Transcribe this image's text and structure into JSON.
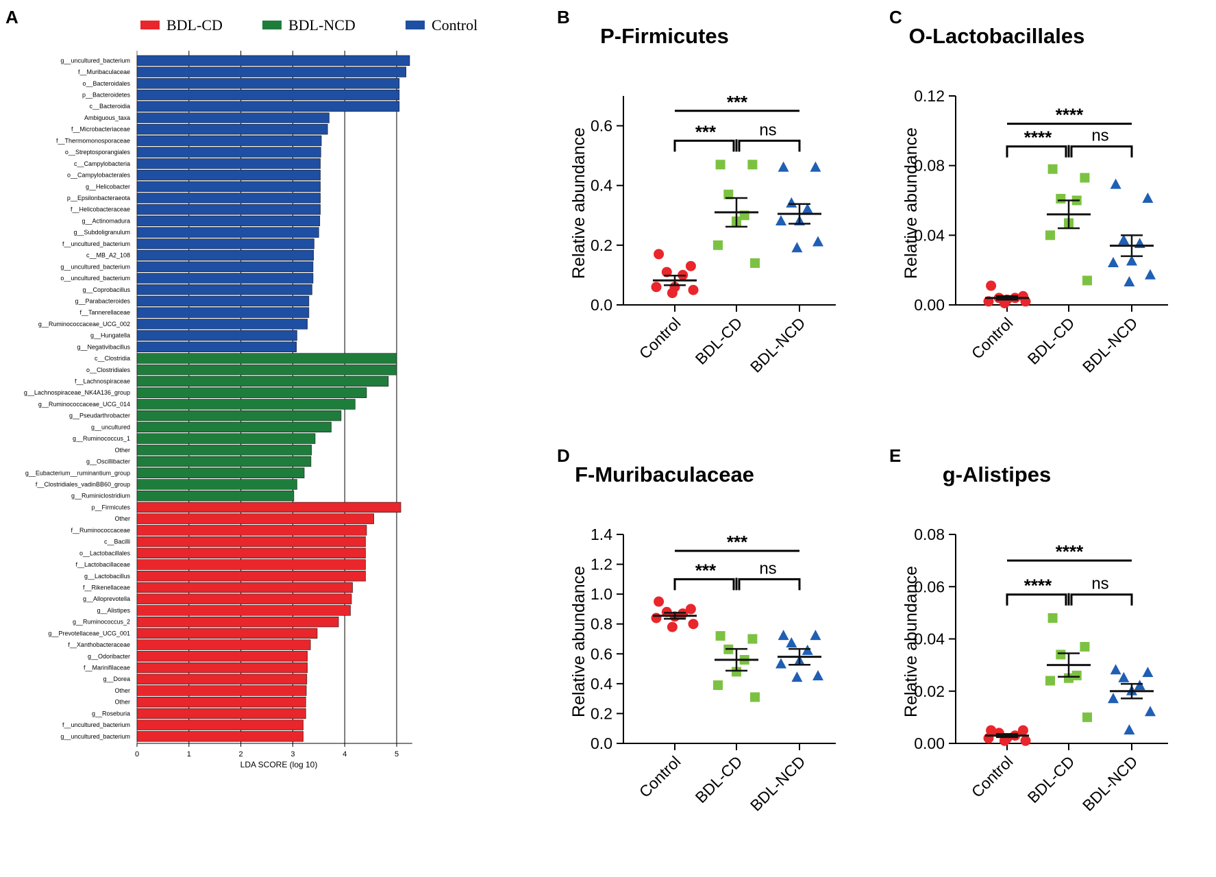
{
  "colors": {
    "bdl_cd": "#e8262b",
    "bdl_ncd": "#1f7d3c",
    "control": "#1f4fa2",
    "green_pt": "#7cc242",
    "blue_pt": "#1f5fb4"
  },
  "chart_data": [
    {
      "id": "A",
      "panel_label": "A",
      "type": "bar",
      "orientation": "horizontal",
      "legend": [
        {
          "name": "BDL-CD",
          "color": "#e8262b"
        },
        {
          "name": "BDL-NCD",
          "color": "#1f7d3c"
        },
        {
          "name": "Control",
          "color": "#1f4fa2"
        }
      ],
      "xlabel": "LDA SCORE (log 10)",
      "xlim": [
        0,
        5.3
      ],
      "xticks": [
        "0",
        "1",
        "2",
        "3",
        "4",
        "5"
      ],
      "bars": [
        {
          "label": "g__uncultured_bacterium",
          "value": 5.25,
          "group": "Control"
        },
        {
          "label": "f__Muribaculaceae",
          "value": 5.18,
          "group": "Control"
        },
        {
          "label": "o__Bacteroidales",
          "value": 5.05,
          "group": "Control"
        },
        {
          "label": "p__Bacteroidetes",
          "value": 5.05,
          "group": "Control"
        },
        {
          "label": "c__Bacteroidia",
          "value": 5.05,
          "group": "Control"
        },
        {
          "label": "Ambiguous_taxa",
          "value": 3.7,
          "group": "Control"
        },
        {
          "label": "f__Microbacteriaceae",
          "value": 3.67,
          "group": "Control"
        },
        {
          "label": "f__Thermomonosporaceae",
          "value": 3.55,
          "group": "Control"
        },
        {
          "label": "o__Streptosporangiales",
          "value": 3.54,
          "group": "Control"
        },
        {
          "label": "c__Campylobacteria",
          "value": 3.53,
          "group": "Control"
        },
        {
          "label": "o__Campylobacterales",
          "value": 3.53,
          "group": "Control"
        },
        {
          "label": "g__Helicobacter",
          "value": 3.53,
          "group": "Control"
        },
        {
          "label": "p__Epsilonbacteraeota",
          "value": 3.53,
          "group": "Control"
        },
        {
          "label": "f__Helicobacteraceae",
          "value": 3.53,
          "group": "Control"
        },
        {
          "label": "g__Actinomadura",
          "value": 3.52,
          "group": "Control"
        },
        {
          "label": "g__Subdoligranulum",
          "value": 3.5,
          "group": "Control"
        },
        {
          "label": "f__uncultured_bacterium",
          "value": 3.41,
          "group": "Control"
        },
        {
          "label": "c__MB_A2_108",
          "value": 3.4,
          "group": "Control"
        },
        {
          "label": "g__uncultured_bacterium",
          "value": 3.39,
          "group": "Control"
        },
        {
          "label": "o__uncultured_bacterium",
          "value": 3.39,
          "group": "Control"
        },
        {
          "label": "g__Coprobacillus",
          "value": 3.37,
          "group": "Control"
        },
        {
          "label": "g__Parabacteroides",
          "value": 3.31,
          "group": "Control"
        },
        {
          "label": "f__Tannerellaceae",
          "value": 3.31,
          "group": "Control"
        },
        {
          "label": "g__Ruminococcaceae_UCG_002",
          "value": 3.28,
          "group": "Control"
        },
        {
          "label": "g__Hungatella",
          "value": 3.08,
          "group": "Control"
        },
        {
          "label": "g__Negativibacillus",
          "value": 3.07,
          "group": "Control"
        },
        {
          "label": "c__Clostridia",
          "value": 5.0,
          "group": "BDL-NCD"
        },
        {
          "label": "o__Clostridiales",
          "value": 5.0,
          "group": "BDL-NCD"
        },
        {
          "label": "f__Lachnospiraceae",
          "value": 4.84,
          "group": "BDL-NCD"
        },
        {
          "label": "g__Lachnospiraceae_NK4A136_group",
          "value": 4.42,
          "group": "BDL-NCD"
        },
        {
          "label": "g__Ruminococcaceae_UCG_014",
          "value": 4.2,
          "group": "BDL-NCD"
        },
        {
          "label": "g__Pseudarthrobacter",
          "value": 3.93,
          "group": "BDL-NCD"
        },
        {
          "label": "g__uncultured",
          "value": 3.74,
          "group": "BDL-NCD"
        },
        {
          "label": "g__Ruminococcus_1",
          "value": 3.43,
          "group": "BDL-NCD"
        },
        {
          "label": "Other",
          "value": 3.36,
          "group": "BDL-NCD"
        },
        {
          "label": "g__Oscillibacter",
          "value": 3.35,
          "group": "BDL-NCD"
        },
        {
          "label": "g__Eubacterium__ruminantium_group",
          "value": 3.22,
          "group": "BDL-NCD"
        },
        {
          "label": "f__Clostridiales_vadinBB60_group",
          "value": 3.08,
          "group": "BDL-NCD"
        },
        {
          "label": "g__Ruminiclostridium",
          "value": 3.02,
          "group": "BDL-NCD"
        },
        {
          "label": "p__Firmicutes",
          "value": 5.08,
          "group": "BDL-CD"
        },
        {
          "label": "Other",
          "value": 4.56,
          "group": "BDL-CD"
        },
        {
          "label": "f__Ruminococcaceae",
          "value": 4.42,
          "group": "BDL-CD"
        },
        {
          "label": "c__Bacilli",
          "value": 4.4,
          "group": "BDL-CD"
        },
        {
          "label": "o__Lactobacillales",
          "value": 4.4,
          "group": "BDL-CD"
        },
        {
          "label": "f__Lactobacillaceae",
          "value": 4.4,
          "group": "BDL-CD"
        },
        {
          "label": "g__Lactobacillus",
          "value": 4.4,
          "group": "BDL-CD"
        },
        {
          "label": "f__Rikenellaceae",
          "value": 4.15,
          "group": "BDL-CD"
        },
        {
          "label": "g__Alloprevotella",
          "value": 4.13,
          "group": "BDL-CD"
        },
        {
          "label": "g__Alistipes",
          "value": 4.11,
          "group": "BDL-CD"
        },
        {
          "label": "g__Ruminococcus_2",
          "value": 3.88,
          "group": "BDL-CD"
        },
        {
          "label": "g__Prevotellaceae_UCG_001",
          "value": 3.47,
          "group": "BDL-CD"
        },
        {
          "label": "f__Xanthobacteraceae",
          "value": 3.34,
          "group": "BDL-CD"
        },
        {
          "label": "g__Odoribacter",
          "value": 3.28,
          "group": "BDL-CD"
        },
        {
          "label": "f__Marinifilaceae",
          "value": 3.28,
          "group": "BDL-CD"
        },
        {
          "label": "g__Dorea",
          "value": 3.27,
          "group": "BDL-CD"
        },
        {
          "label": "Other",
          "value": 3.26,
          "group": "BDL-CD"
        },
        {
          "label": "Other",
          "value": 3.25,
          "group": "BDL-CD"
        },
        {
          "label": "g__Roseburia",
          "value": 3.25,
          "group": "BDL-CD"
        },
        {
          "label": "f__uncultured_bacterium",
          "value": 3.2,
          "group": "BDL-CD"
        },
        {
          "label": "g__uncultured_bacterium",
          "value": 3.2,
          "group": "BDL-CD"
        }
      ]
    },
    {
      "id": "B",
      "panel_label": "B",
      "type": "scatter",
      "title": "P-Firmicutes",
      "ylabel": "Relative abundance",
      "ylim": [
        0,
        0.7
      ],
      "yticks": [
        "0.0",
        "0.2",
        "0.4",
        "0.6"
      ],
      "categories": [
        "Control",
        "BDL-CD",
        "BDL-NCD"
      ],
      "groups": [
        {
          "name": "Control",
          "shape": "circle",
          "color": "#e8262b",
          "points": [
            0.17,
            0.13,
            0.11,
            0.1,
            0.06,
            0.06,
            0.05,
            0.04
          ],
          "mean": 0.082,
          "sem": 0.016
        },
        {
          "name": "BDL-CD",
          "shape": "square",
          "color": "#7cc242",
          "points": [
            0.47,
            0.47,
            0.37,
            0.3,
            0.28,
            0.2,
            0.14
          ],
          "mean": 0.31,
          "sem": 0.048
        },
        {
          "name": "BDL-NCD",
          "shape": "triangle",
          "color": "#1f5fb4",
          "points": [
            0.46,
            0.46,
            0.34,
            0.32,
            0.28,
            0.28,
            0.21,
            0.19
          ],
          "mean": 0.305,
          "sem": 0.033
        }
      ],
      "significance": [
        {
          "from": 0,
          "to": 2,
          "label": "***",
          "y": 0.65,
          "bracket": false
        },
        {
          "from": 0,
          "to": 1,
          "label": "***",
          "y": 0.55,
          "bracket": true
        },
        {
          "from": 1,
          "to": 2,
          "label": "ns",
          "y": 0.55,
          "bracket": true
        }
      ]
    },
    {
      "id": "C",
      "panel_label": "C",
      "type": "scatter",
      "title": "O-Lactobacillales",
      "ylabel": "Relative abundance",
      "ylim": [
        0,
        0.12
      ],
      "yticks": [
        "0.00",
        "0.04",
        "0.08",
        "0.12"
      ],
      "categories": [
        "Control",
        "BDL-CD",
        "BDL-NCD"
      ],
      "groups": [
        {
          "name": "Control",
          "shape": "circle",
          "color": "#e8262b",
          "points": [
            0.011,
            0.005,
            0.004,
            0.004,
            0.003,
            0.002,
            0.002,
            0.001
          ],
          "mean": 0.004,
          "sem": 0.001
        },
        {
          "name": "BDL-CD",
          "shape": "square",
          "color": "#7cc242",
          "points": [
            0.078,
            0.073,
            0.061,
            0.06,
            0.047,
            0.04,
            0.014
          ],
          "mean": 0.052,
          "sem": 0.008
        },
        {
          "name": "BDL-NCD",
          "shape": "triangle",
          "color": "#1f5fb4",
          "points": [
            0.069,
            0.061,
            0.037,
            0.035,
            0.025,
            0.024,
            0.017,
            0.013
          ],
          "mean": 0.034,
          "sem": 0.006
        }
      ],
      "significance": [
        {
          "from": 0,
          "to": 2,
          "label": "****",
          "y": 0.104,
          "bracket": false
        },
        {
          "from": 0,
          "to": 1,
          "label": "****",
          "y": 0.091,
          "bracket": true
        },
        {
          "from": 1,
          "to": 2,
          "label": "ns",
          "y": 0.091,
          "bracket": true
        }
      ]
    },
    {
      "id": "D",
      "panel_label": "D",
      "type": "scatter",
      "title": "F-Muribaculaceae",
      "ylabel": "Relative abundance",
      "ylim": [
        0,
        1.4
      ],
      "yticks": [
        "0.0",
        "0.2",
        "0.4",
        "0.6",
        "0.8",
        "1.0",
        "1.2",
        "1.4"
      ],
      "categories": [
        "Control",
        "BDL-CD",
        "BDL-NCD"
      ],
      "groups": [
        {
          "name": "Control",
          "shape": "circle",
          "color": "#e8262b",
          "points": [
            0.95,
            0.9,
            0.88,
            0.87,
            0.85,
            0.84,
            0.8,
            0.78
          ],
          "mean": 0.855,
          "sem": 0.02
        },
        {
          "name": "BDL-CD",
          "shape": "square",
          "color": "#7cc242",
          "points": [
            0.72,
            0.7,
            0.63,
            0.56,
            0.48,
            0.39,
            0.31
          ],
          "mean": 0.56,
          "sem": 0.073
        },
        {
          "name": "BDL-NCD",
          "shape": "triangle",
          "color": "#1f5fb4",
          "points": [
            0.72,
            0.72,
            0.67,
            0.62,
            0.55,
            0.53,
            0.45,
            0.44
          ],
          "mean": 0.58,
          "sem": 0.053
        }
      ],
      "significance": [
        {
          "from": 0,
          "to": 2,
          "label": "***",
          "y": 1.29,
          "bracket": false
        },
        {
          "from": 0,
          "to": 1,
          "label": "***",
          "y": 1.1,
          "bracket": true
        },
        {
          "from": 1,
          "to": 2,
          "label": "ns",
          "y": 1.1,
          "bracket": true
        }
      ]
    },
    {
      "id": "E",
      "panel_label": "E",
      "type": "scatter",
      "title": "g-Alistipes",
      "ylabel": "Relative abundance",
      "ylim": [
        0,
        0.08
      ],
      "yticks": [
        "0.00",
        "0.02",
        "0.04",
        "0.06",
        "0.08"
      ],
      "categories": [
        "Control",
        "BDL-CD",
        "BDL-NCD"
      ],
      "groups": [
        {
          "name": "Control",
          "shape": "circle",
          "color": "#e8262b",
          "points": [
            0.005,
            0.005,
            0.004,
            0.003,
            0.002,
            0.002,
            0.001,
            0.001
          ],
          "mean": 0.003,
          "sem": 0.0006
        },
        {
          "name": "BDL-CD",
          "shape": "square",
          "color": "#7cc242",
          "points": [
            0.048,
            0.037,
            0.034,
            0.026,
            0.025,
            0.024,
            0.01
          ],
          "mean": 0.03,
          "sem": 0.0045
        },
        {
          "name": "BDL-NCD",
          "shape": "triangle",
          "color": "#1f5fb4",
          "points": [
            0.028,
            0.027,
            0.025,
            0.022,
            0.02,
            0.017,
            0.012,
            0.005
          ],
          "mean": 0.02,
          "sem": 0.0028
        }
      ],
      "significance": [
        {
          "from": 0,
          "to": 2,
          "label": "****",
          "y": 0.07,
          "bracket": false
        },
        {
          "from": 0,
          "to": 1,
          "label": "****",
          "y": 0.057,
          "bracket": true
        },
        {
          "from": 1,
          "to": 2,
          "label": "ns",
          "y": 0.057,
          "bracket": true
        }
      ]
    }
  ]
}
